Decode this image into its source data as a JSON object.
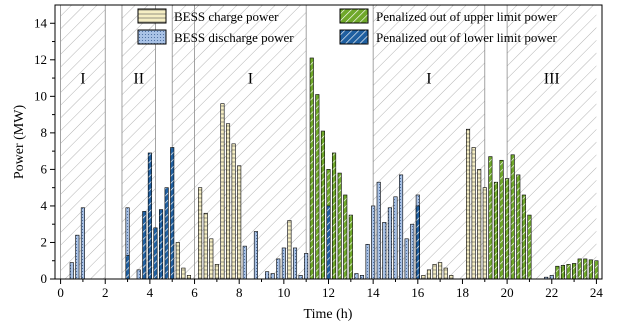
{
  "chart_data": {
    "type": "bar",
    "xlabel": "Time (h)",
    "ylabel": "Power (MW)",
    "xlim": [
      -0.25,
      24.25
    ],
    "ylim": [
      0,
      15
    ],
    "x_ticks": [
      "0",
      "2",
      "4",
      "6",
      "8",
      "10",
      "12",
      "14",
      "16",
      "18",
      "20",
      "22",
      "24"
    ],
    "y_ticks": [
      "0",
      "2",
      "4",
      "6",
      "8",
      "10",
      "12",
      "14"
    ],
    "legend_position": "top",
    "series": [
      {
        "name": "BESS charge power",
        "color": "#f6efc4",
        "bars": [
          [
            5.25,
            2.0
          ],
          [
            5.5,
            0.6
          ],
          [
            5.75,
            0.2
          ],
          [
            6.25,
            5.0
          ],
          [
            6.5,
            3.6
          ],
          [
            6.75,
            2.2
          ],
          [
            7.0,
            0.8
          ],
          [
            7.25,
            9.6
          ],
          [
            7.5,
            8.5
          ],
          [
            7.75,
            7.4
          ],
          [
            8.0,
            6.2
          ],
          [
            10.25,
            3.2
          ],
          [
            16.25,
            0.2
          ],
          [
            16.5,
            0.5
          ],
          [
            16.75,
            0.8
          ],
          [
            17.0,
            0.9
          ],
          [
            17.25,
            0.6
          ],
          [
            17.5,
            0.2
          ],
          [
            18.25,
            8.2
          ],
          [
            18.5,
            7.2
          ],
          [
            18.75,
            6.0
          ],
          [
            19.0,
            5.0
          ],
          [
            19.5,
            4.5
          ],
          [
            19.75,
            5.8
          ]
        ]
      },
      {
        "name": "BESS discharge power",
        "color": "#a9c2e6",
        "bars": [
          [
            0.5,
            0.9
          ],
          [
            0.75,
            2.4
          ],
          [
            1.0,
            3.9
          ],
          [
            3.0,
            3.9
          ],
          [
            3.5,
            0.5
          ],
          [
            8.25,
            1.8
          ],
          [
            8.75,
            2.6
          ],
          [
            9.25,
            0.4
          ],
          [
            9.5,
            0.3
          ],
          [
            9.75,
            1.1
          ],
          [
            10.0,
            1.7
          ],
          [
            10.5,
            1.7
          ],
          [
            10.75,
            0.2
          ],
          [
            11.0,
            1.4
          ],
          [
            13.25,
            0.3
          ],
          [
            13.5,
            0.2
          ],
          [
            13.75,
            1.9
          ],
          [
            14.0,
            4.0
          ],
          [
            14.25,
            5.3
          ],
          [
            14.5,
            3.1
          ],
          [
            14.75,
            3.9
          ],
          [
            15.0,
            4.5
          ],
          [
            15.25,
            5.7
          ],
          [
            15.5,
            2.2
          ],
          [
            15.75,
            3.0
          ],
          [
            16.0,
            4.6
          ],
          [
            21.75,
            0.1
          ],
          [
            22.0,
            0.2
          ]
        ]
      },
      {
        "name": "Penalized out of upper limit power",
        "color": "#6fa82a",
        "bars": [
          [
            11.25,
            12.1
          ],
          [
            11.5,
            10.1
          ],
          [
            11.75,
            8.1
          ],
          [
            12.0,
            6.0
          ],
          [
            12.25,
            6.9
          ],
          [
            12.5,
            5.8
          ],
          [
            12.75,
            4.6
          ],
          [
            13.0,
            3.5
          ],
          [
            19.25,
            6.7
          ],
          [
            19.5,
            5.3
          ],
          [
            19.75,
            6.5
          ],
          [
            20.0,
            5.5
          ],
          [
            20.25,
            6.8
          ],
          [
            20.5,
            5.7
          ],
          [
            20.75,
            4.6
          ],
          [
            21.0,
            3.5
          ],
          [
            22.25,
            0.7
          ],
          [
            22.5,
            0.75
          ],
          [
            22.75,
            0.8
          ],
          [
            23.0,
            0.85
          ],
          [
            23.25,
            1.1
          ],
          [
            23.5,
            1.1
          ],
          [
            23.75,
            1.05
          ],
          [
            24.0,
            1.0
          ]
        ]
      },
      {
        "name": "Penalized out of lower limit power",
        "color": "#1f5fa0",
        "bars": [
          [
            3.0,
            1.3
          ],
          [
            3.75,
            3.7
          ],
          [
            4.0,
            6.9
          ],
          [
            4.25,
            2.8
          ],
          [
            4.5,
            3.8
          ],
          [
            4.75,
            5.0
          ],
          [
            5.0,
            7.2
          ],
          [
            12.0,
            4.0
          ],
          [
            16.0,
            4.0
          ]
        ]
      }
    ],
    "regions": [
      {
        "x0": 0.0,
        "x1": 2.0,
        "label": "I",
        "hatched": true
      },
      {
        "x0": 2.0,
        "x1": 2.75,
        "label": "",
        "hatched": false
      },
      {
        "x0": 2.75,
        "x1": 4.25,
        "label": "",
        "hatched": true
      },
      {
        "x0": 4.25,
        "x1": 5.0,
        "label": "",
        "hatched": false
      },
      {
        "x0": 5.0,
        "x1": 6.0,
        "label": "",
        "hatched": true
      },
      {
        "x0": 6.0,
        "x1": 11.0,
        "label": "I",
        "hatched": true
      },
      {
        "x0": 11.0,
        "x1": 14.0,
        "label": "",
        "hatched": false
      },
      {
        "x0": 14.0,
        "x1": 19.0,
        "label": "I",
        "hatched": true
      },
      {
        "x0": 19.0,
        "x1": 20.0,
        "label": "",
        "hatched": false
      },
      {
        "x0": 20.0,
        "x1": 24.0,
        "label": "III",
        "hatched": true
      }
    ],
    "extra_labels": [
      {
        "x": 3.5,
        "text": "II"
      }
    ]
  }
}
